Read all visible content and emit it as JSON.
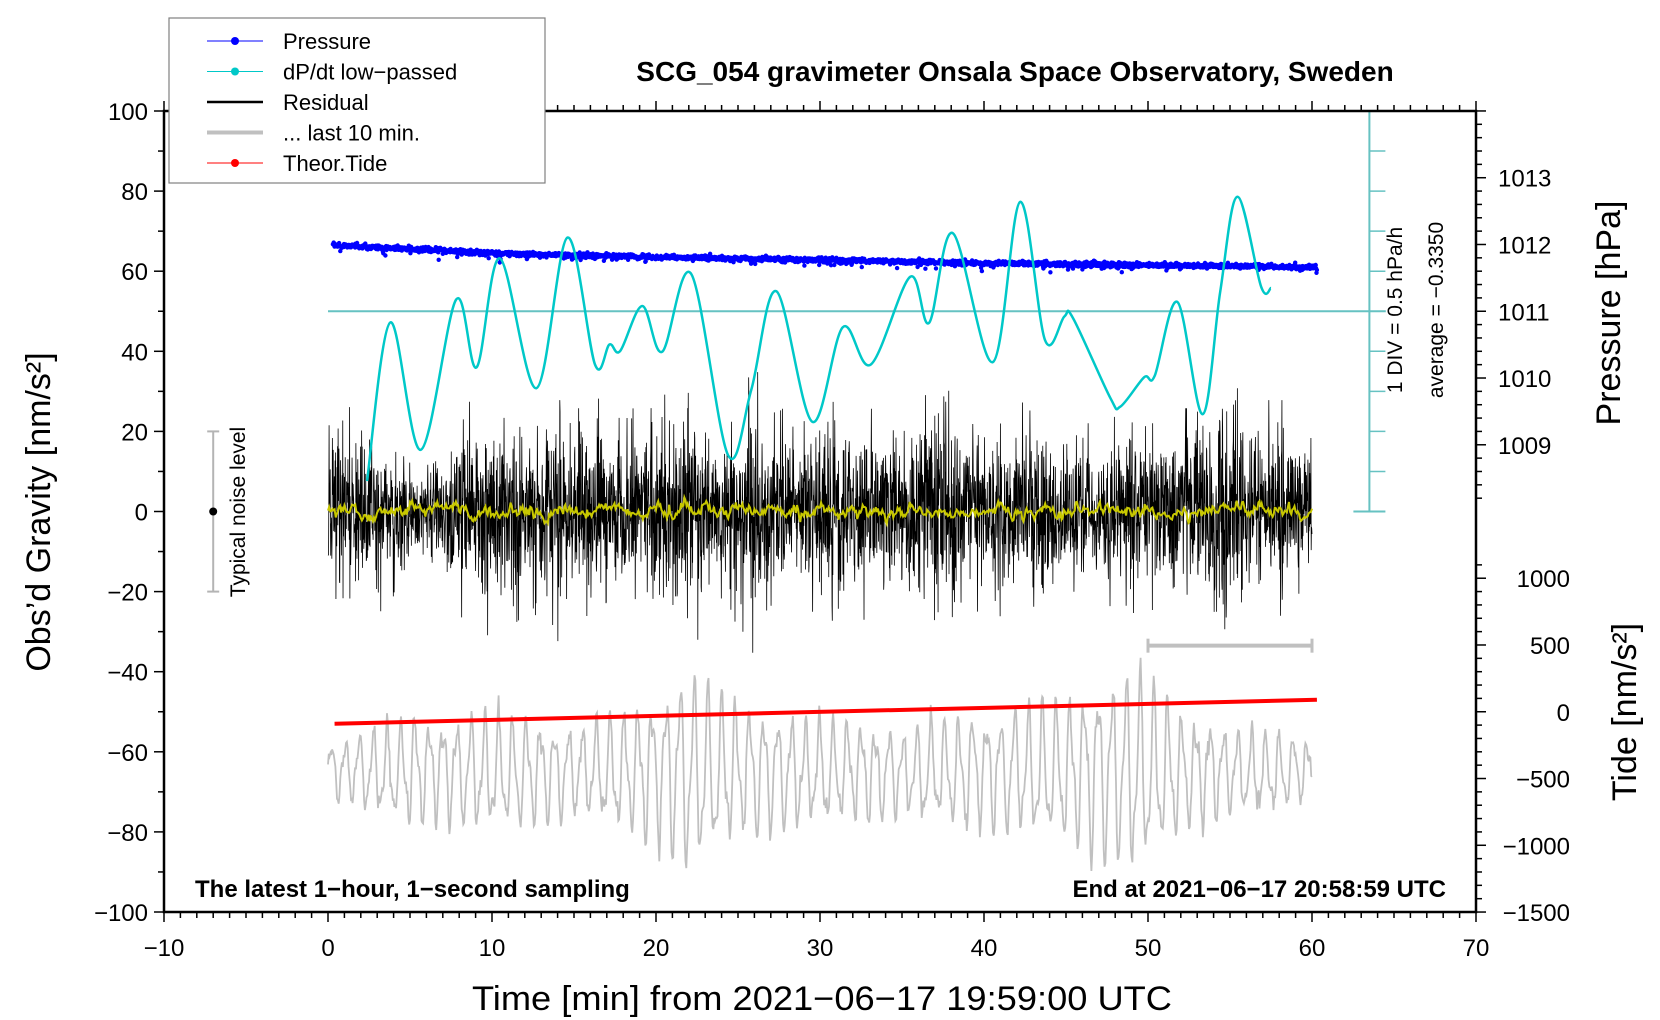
{
  "chart_data": {
    "type": "line",
    "title": "SCG_054 gravimeter Onsala Space Observatory, Sweden",
    "xlabel": "Time [min] from 2021−06−17 19:59:00 UTC",
    "ylabel": "Obs’d Gravity [nm/s²]",
    "y2label": "Pressure [hPa]",
    "y3label": "Tide [nm/s²]",
    "xlim": [
      -10,
      70
    ],
    "ylim": [
      -100,
      100
    ],
    "xticks": [
      -10,
      0,
      10,
      20,
      30,
      40,
      50,
      60,
      70
    ],
    "yticks": [
      100,
      80,
      60,
      40,
      20,
      0,
      -20,
      -40,
      -60,
      -80,
      -100
    ],
    "pressure_ticks": [
      1013,
      1012,
      1011,
      1010,
      1009
    ],
    "pressure_axis": {
      "ref_hPa": 1011,
      "ref_gravity": 50,
      "gravity_per_hPa": 16.67
    },
    "tide_ticks": [
      1000,
      500,
      0,
      -500,
      -1000,
      -1500
    ],
    "tide_axis": {
      "ref_tide": 0,
      "ref_gravity": -50,
      "gravity_per_500": 16.67
    },
    "legend": {
      "placement": "top-left",
      "entries": [
        {
          "label": "Pressure",
          "color": "#0000ff",
          "marker": true
        },
        {
          "label": "dP/dt low−passed",
          "color": "#00c8c8",
          "marker": true
        },
        {
          "label": "Residual",
          "color": "#000000",
          "marker": false
        },
        {
          "label": "... last 10 min.",
          "color": "#c0c0c0",
          "marker": false
        },
        {
          "label": "Theor.Tide",
          "color": "#ff0000",
          "marker": true
        }
      ]
    },
    "series": {
      "pressure": {
        "unit": "hPa",
        "t": [
          0.3,
          5,
          10,
          20,
          30,
          40,
          50,
          60.3
        ],
        "values": [
          1011.99,
          1011.93,
          1011.87,
          1011.81,
          1011.77,
          1011.72,
          1011.69,
          1011.66
        ]
      },
      "dpdt": {
        "unit": "hPa/h",
        "zero_gravity": 50,
        "gravity_per_div": 10,
        "t": [
          2.38,
          3.8,
          5.66,
          7.81,
          9.06,
          10.48,
          12.71,
          14.6,
          16.28,
          17.16,
          17.82,
          19.17,
          20.38,
          22.15,
          24.39,
          25.81,
          27.34,
          29.53,
          31.39,
          33.1,
          35.5,
          36.65,
          38.1,
          40.54,
          42.2,
          43.72,
          44.9,
          45.44,
          47.71,
          48.32,
          49.76,
          50.41,
          51.8,
          53.33,
          54.4,
          55.45,
          56.9,
          57.5
        ],
        "values": [
          -2.12,
          -0.14,
          -1.73,
          0.145,
          -0.7,
          0.66,
          -0.96,
          0.92,
          -0.665,
          -0.415,
          -0.495,
          0.065,
          -0.505,
          0.465,
          -1.795,
          -0.98,
          0.25,
          -1.38,
          -0.2,
          -0.665,
          0.43,
          -0.145,
          0.975,
          -0.635,
          1.365,
          -0.36,
          -0.065,
          -0.09,
          -1.085,
          -1.19,
          -0.825,
          -0.805,
          0.115,
          -1.285,
          0.24,
          1.43,
          0.305,
          0.29
        ]
      },
      "residual": {
        "unit": "nm/s2",
        "t_range": [
          0,
          60
        ],
        "envelope_t": [
          0,
          2,
          4,
          6,
          8,
          10,
          12,
          14,
          16,
          18,
          20,
          22,
          24,
          26,
          28,
          30,
          32,
          34,
          36,
          38,
          40,
          42,
          44,
          46,
          48,
          50,
          52,
          54,
          56,
          58,
          60
        ],
        "envelope": [
          22,
          25,
          18,
          14,
          24,
          26,
          22,
          27,
          24,
          22,
          26,
          30,
          18,
          30,
          20,
          22,
          24,
          20,
          26,
          28,
          20,
          24,
          22,
          18,
          20,
          22,
          20,
          30,
          24,
          26,
          18
        ],
        "smoothed_amplitude": 1.5
      },
      "last10": {
        "unit": "nm/s2",
        "center": -65,
        "period_min": 0.85,
        "envelope_t": [
          0,
          5,
          10,
          15,
          20,
          22,
          25,
          30,
          35,
          40,
          45,
          48,
          49.5,
          52,
          55,
          60
        ],
        "envelope": [
          8,
          14,
          16,
          12,
          20,
          27,
          18,
          14,
          12,
          16,
          20,
          26,
          28,
          16,
          12,
          9
        ],
        "window_bar": {
          "t": [
            50,
            60
          ],
          "gravity": -33.5
        }
      },
      "theor_tide": {
        "unit": "nm/s2",
        "t": [
          0.4,
          60.3
        ],
        "values": [
          -90,
          90
        ]
      }
    },
    "noise_bar": {
      "label": "Typical noise level",
      "t": -7,
      "range": [
        -20,
        20
      ]
    },
    "annotations": {
      "div": "1 DIV = 0.5 hPa/h",
      "average": "average = −0.3350",
      "left_note": "The latest 1−hour, 1−second sampling",
      "right_note": "End at 2021−06−17 20:58:59 UTC"
    },
    "colors": {
      "pressure": "#0000ff",
      "dpdt": "#00c8c8",
      "scale": "#66c2c2",
      "residual": "#000000",
      "smoothed": "#c8c800",
      "last10": "#c0c0c0",
      "tide": "#ff0000",
      "noise": "#b4b4b4"
    },
    "grid": false
  }
}
